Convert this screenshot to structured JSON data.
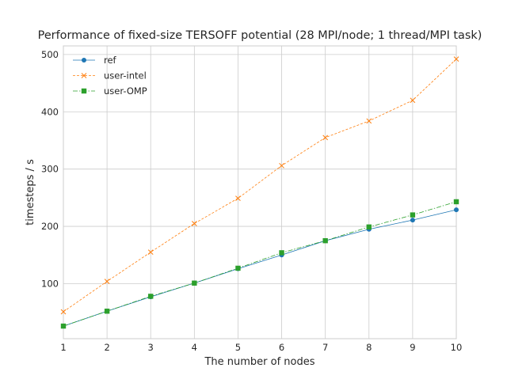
{
  "chart_data": {
    "type": "line",
    "title": "Performance of fixed-size TERSOFF potential (28 MPI/node; 1 thread/MPI task)",
    "xlabel": "The number of nodes",
    "ylabel": "timesteps / s",
    "xlim": [
      1,
      10
    ],
    "ylim": [
      4,
      515
    ],
    "xticks": [
      1,
      2,
      3,
      4,
      5,
      6,
      7,
      8,
      9,
      10
    ],
    "yticks": [
      100,
      200,
      300,
      400,
      500
    ],
    "grid": true,
    "legend_position": "top-left",
    "x": [
      1,
      2,
      3,
      4,
      5,
      6,
      7,
      8,
      9,
      10
    ],
    "series": [
      {
        "name": "ref",
        "color": "#1f77b4",
        "linestyle": "solid",
        "marker": "circle",
        "values": [
          26,
          52,
          77,
          101,
          126,
          150,
          175,
          195,
          211,
          229
        ]
      },
      {
        "name": "user-intel",
        "color": "#ff7f0e",
        "linestyle": "dashed",
        "marker": "x",
        "values": [
          51,
          104,
          155,
          205,
          249,
          306,
          355,
          384,
          420,
          492
        ]
      },
      {
        "name": "user-OMP",
        "color": "#2ca02c",
        "linestyle": "dashdot",
        "marker": "square",
        "values": [
          26,
          52,
          78,
          101,
          127,
          154,
          175,
          199,
          220,
          243
        ]
      }
    ]
  }
}
